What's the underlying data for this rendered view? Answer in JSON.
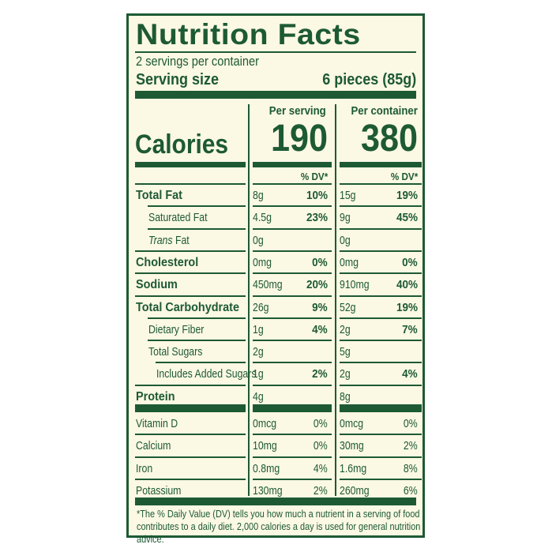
{
  "title": "Nutrition Facts",
  "servings_per_container": "2 servings per container",
  "serving_size_label": "Serving size",
  "serving_size_value": "6 pieces (85g)",
  "columns": {
    "per_serving": "Per serving",
    "per_container": "Per container"
  },
  "calories": {
    "label": "Calories",
    "per_serving": "190",
    "per_container": "380"
  },
  "dv_header": "% DV*",
  "nutrients": [
    {
      "name": "Total Fat",
      "bold": true,
      "indent": 0,
      "s_amt": "8g",
      "s_dv": "10%",
      "c_amt": "15g",
      "c_dv": "19%"
    },
    {
      "name": "Saturated Fat",
      "bold": false,
      "indent": 1,
      "s_amt": "4.5g",
      "s_dv": "23%",
      "c_amt": "9g",
      "c_dv": "45%"
    },
    {
      "name": "Trans Fat",
      "bold": false,
      "indent": 1,
      "italic_word": "Trans",
      "s_amt": "0g",
      "s_dv": "",
      "c_amt": "0g",
      "c_dv": ""
    },
    {
      "name": "Cholesterol",
      "bold": true,
      "indent": 0,
      "s_amt": "0mg",
      "s_dv": "0%",
      "c_amt": "0mg",
      "c_dv": "0%"
    },
    {
      "name": "Sodium",
      "bold": true,
      "indent": 0,
      "s_amt": "450mg",
      "s_dv": "20%",
      "c_amt": "910mg",
      "c_dv": "40%"
    },
    {
      "name": "Total Carbohydrate",
      "bold": true,
      "indent": 0,
      "s_amt": "26g",
      "s_dv": "9%",
      "c_amt": "52g",
      "c_dv": "19%"
    },
    {
      "name": "Dietary Fiber",
      "bold": false,
      "indent": 1,
      "s_amt": "1g",
      "s_dv": "4%",
      "c_amt": "2g",
      "c_dv": "7%"
    },
    {
      "name": "Total Sugars",
      "bold": false,
      "indent": 1,
      "s_amt": "2g",
      "s_dv": "",
      "c_amt": "5g",
      "c_dv": ""
    },
    {
      "name": "Includes Added Sugars",
      "bold": false,
      "indent": 2,
      "s_amt": "1g",
      "s_dv": "2%",
      "c_amt": "2g",
      "c_dv": "4%"
    },
    {
      "name": "Protein",
      "bold": true,
      "indent": 0,
      "s_amt": "4g",
      "s_dv": "",
      "c_amt": "8g",
      "c_dv": ""
    }
  ],
  "vitamins": [
    {
      "name": "Vitamin D",
      "s_amt": "0mcg",
      "s_dv": "0%",
      "c_amt": "0mcg",
      "c_dv": "0%"
    },
    {
      "name": "Calcium",
      "s_amt": "10mg",
      "s_dv": "0%",
      "c_amt": "30mg",
      "c_dv": "2%"
    },
    {
      "name": "Iron",
      "s_amt": "0.8mg",
      "s_dv": "4%",
      "c_amt": "1.6mg",
      "c_dv": "8%"
    },
    {
      "name": "Potassium",
      "s_amt": "130mg",
      "s_dv": "2%",
      "c_amt": "260mg",
      "c_dv": "6%"
    }
  ],
  "footnote": "*The % Daily Value (DV) tells you how much a nutrient in a serving of food contributes to a daily diet. 2,000 calories a day is used for general nutrition advice.",
  "colors": {
    "ink": "#1d5a34",
    "background": "#fbf8e4"
  }
}
